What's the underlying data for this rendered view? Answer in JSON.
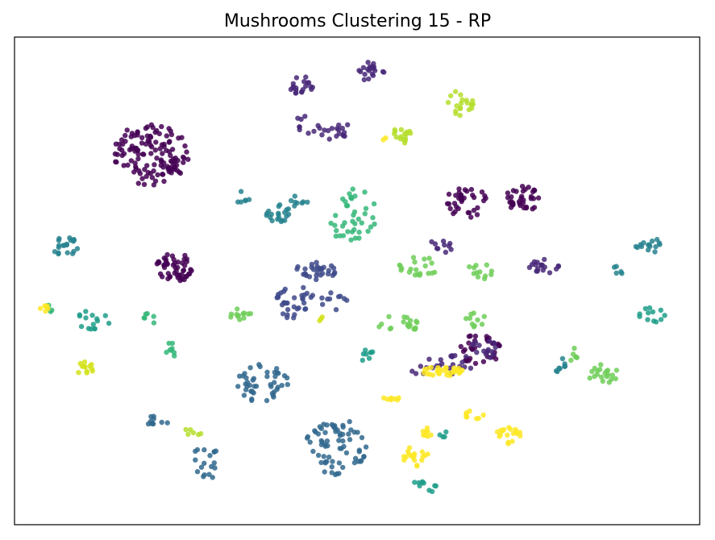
{
  "chart_data": {
    "type": "scatter",
    "title": "Mushrooms Clustering 15 - RP",
    "xlabel": "",
    "ylabel": "",
    "xlim": [
      0,
      100
    ],
    "ylim": [
      0,
      100
    ],
    "grid": false,
    "legend": "none",
    "axis_ticks": "hidden",
    "colormap": "viridis",
    "point_alpha": 0.85,
    "groups": [
      {
        "color": "#440154",
        "blobs": [
          [
            20,
            76,
            5.5,
            6.5,
            130
          ],
          [
            23.5,
            53,
            3.2,
            3,
            50
          ],
          [
            66,
            66,
            3,
            3.5,
            35
          ],
          [
            74,
            67,
            2.5,
            3,
            35
          ],
          [
            68,
            36,
            3.5,
            3,
            35
          ]
        ]
      },
      {
        "color": "#482878",
        "blobs": [
          [
            42,
            90,
            2,
            2,
            20
          ],
          [
            52,
            93,
            2,
            2,
            20
          ],
          [
            46.5,
            81,
            3,
            2,
            18
          ],
          [
            42.5,
            82,
            2,
            2,
            8
          ],
          [
            77,
            53,
            2.5,
            1.5,
            18
          ],
          [
            62,
            57,
            2,
            1.5,
            10
          ],
          [
            62,
            33,
            5,
            3,
            25
          ],
          [
            68.5,
            36,
            2,
            2,
            15
          ]
        ]
      },
      {
        "color": "#3e4a89",
        "blobs": [
          [
            44,
            52,
            3,
            2,
            30
          ],
          [
            41,
            47,
            3,
            2,
            18
          ],
          [
            46.5,
            46,
            2,
            2,
            10
          ],
          [
            40.5,
            44,
            2,
            2,
            15
          ]
        ]
      },
      {
        "color": "#31688e",
        "blobs": [
          [
            36,
            29,
            4,
            4,
            45
          ],
          [
            47,
            16,
            4.5,
            6,
            70
          ],
          [
            21,
            21,
            1.5,
            2,
            10
          ],
          [
            28,
            13,
            2,
            4,
            18
          ]
        ]
      },
      {
        "color": "#26828e",
        "blobs": [
          [
            7.5,
            57,
            2,
            2,
            20
          ],
          [
            38.5,
            64,
            2,
            2,
            20
          ],
          [
            41.5,
            66,
            1.5,
            1.5,
            8
          ],
          [
            33.5,
            67,
            1.5,
            1.5,
            6
          ],
          [
            92.5,
            57,
            2,
            2,
            15
          ],
          [
            88,
            52,
            1,
            1.5,
            5
          ],
          [
            80,
            32,
            1,
            2.5,
            8
          ]
        ]
      },
      {
        "color": "#1f9e89",
        "blobs": [
          [
            11.5,
            42,
            2.5,
            2,
            15
          ],
          [
            51,
            35,
            1.5,
            1.5,
            8
          ],
          [
            60,
            8,
            2,
            1.5,
            10
          ],
          [
            63,
            19,
            1,
            1.5,
            4
          ],
          [
            93,
            43,
            2,
            1.5,
            12
          ]
        ]
      },
      {
        "color": "#35b779",
        "blobs": [
          [
            23,
            36,
            1,
            2,
            8
          ],
          [
            19.5,
            42,
            1,
            1.5,
            6
          ],
          [
            49.5,
            63,
            3.5,
            6,
            40
          ],
          [
            4.5,
            44,
            1.5,
            1.5,
            5
          ]
        ]
      },
      {
        "color": "#6ece58",
        "blobs": [
          [
            33,
            43,
            1.5,
            1.5,
            12
          ],
          [
            59,
            53,
            3,
            2,
            20
          ],
          [
            68,
            52,
            2,
            2,
            12
          ],
          [
            56,
            41,
            3,
            2,
            18
          ],
          [
            67.5,
            42,
            2,
            1.5,
            10
          ],
          [
            86,
            31,
            3,
            2,
            20
          ],
          [
            81.5,
            35,
            1,
            1.5,
            6
          ]
        ]
      },
      {
        "color": "#b5de2b",
        "blobs": [
          [
            56.5,
            80,
            1.5,
            2,
            12
          ],
          [
            65,
            86,
            2,
            3,
            20
          ],
          [
            26,
            19,
            1.5,
            1,
            6
          ],
          [
            56.5,
            79,
            1,
            1,
            4
          ]
        ]
      },
      {
        "color": "#d4e21a",
        "blobs": [
          [
            10.5,
            32,
            1.5,
            1.5,
            12
          ],
          [
            44.5,
            42.5,
            0.8,
            0.8,
            3
          ]
        ]
      },
      {
        "color": "#fde725",
        "blobs": [
          [
            4.5,
            44.5,
            0.8,
            0.8,
            6
          ],
          [
            62.5,
            31.5,
            3,
            1,
            30
          ],
          [
            72,
            18,
            2,
            2,
            18
          ],
          [
            58.5,
            14,
            2,
            2,
            18
          ],
          [
            60,
            19,
            1,
            1,
            8
          ],
          [
            55,
            26,
            1.2,
            0.8,
            8
          ],
          [
            67,
            22.5,
            1.5,
            1,
            8
          ],
          [
            54,
            79,
            0.5,
            0.5,
            2
          ]
        ]
      }
    ]
  }
}
